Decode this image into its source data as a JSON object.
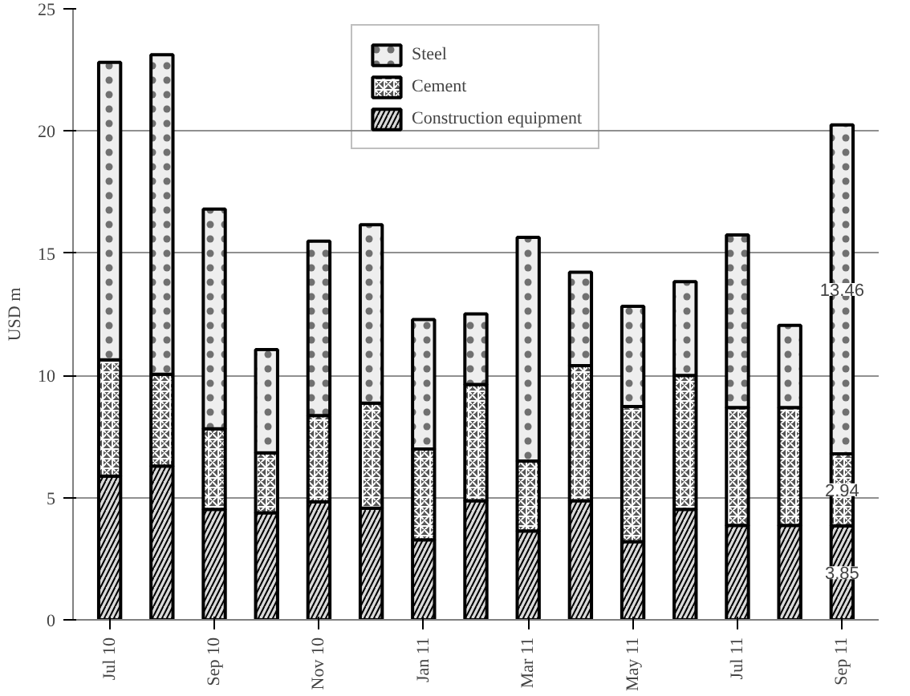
{
  "chart_data": {
    "type": "bar",
    "stacked": true,
    "ylabel": "USD m",
    "categories": [
      "Jul 10",
      null,
      "Sep 10",
      null,
      "Nov 10",
      null,
      "Jan 11",
      null,
      "Mar 11",
      null,
      "May 11",
      null,
      "Jul 11",
      null,
      "Sep 11"
    ],
    "series": [
      {
        "name": "Construction equipment",
        "color": "#d9d9d9",
        "values": [
          5.88,
          6.29,
          4.52,
          4.38,
          4.83,
          4.57,
          3.27,
          4.87,
          3.63,
          4.87,
          3.2,
          4.52,
          3.86,
          3.86,
          3.85
        ],
        "value_labels": [
          null,
          null,
          null,
          null,
          null,
          null,
          null,
          null,
          null,
          null,
          null,
          null,
          null,
          null,
          "3.85"
        ]
      },
      {
        "name": "Cement",
        "color": "#555555",
        "values": [
          4.76,
          3.76,
          3.3,
          2.45,
          3.53,
          4.3,
          3.72,
          4.76,
          2.87,
          5.53,
          5.53,
          5.48,
          4.83,
          4.83,
          2.94
        ],
        "value_labels": [
          null,
          null,
          null,
          null,
          null,
          null,
          null,
          null,
          null,
          null,
          null,
          null,
          null,
          null,
          "2.94"
        ]
      },
      {
        "name": "Steel",
        "color": "#eeeeee",
        "values": [
          12.17,
          13.07,
          8.99,
          4.23,
          7.13,
          7.3,
          5.3,
          2.89,
          9.15,
          3.82,
          4.1,
          3.84,
          7.06,
          3.36,
          13.46
        ],
        "value_labels": [
          null,
          null,
          null,
          null,
          null,
          null,
          null,
          null,
          null,
          null,
          null,
          null,
          null,
          null,
          "13.46"
        ]
      }
    ],
    "ylim": [
      0,
      25
    ],
    "yticks": [
      0,
      5,
      10,
      15,
      20,
      25
    ],
    "grid": "y",
    "legend": "top"
  }
}
